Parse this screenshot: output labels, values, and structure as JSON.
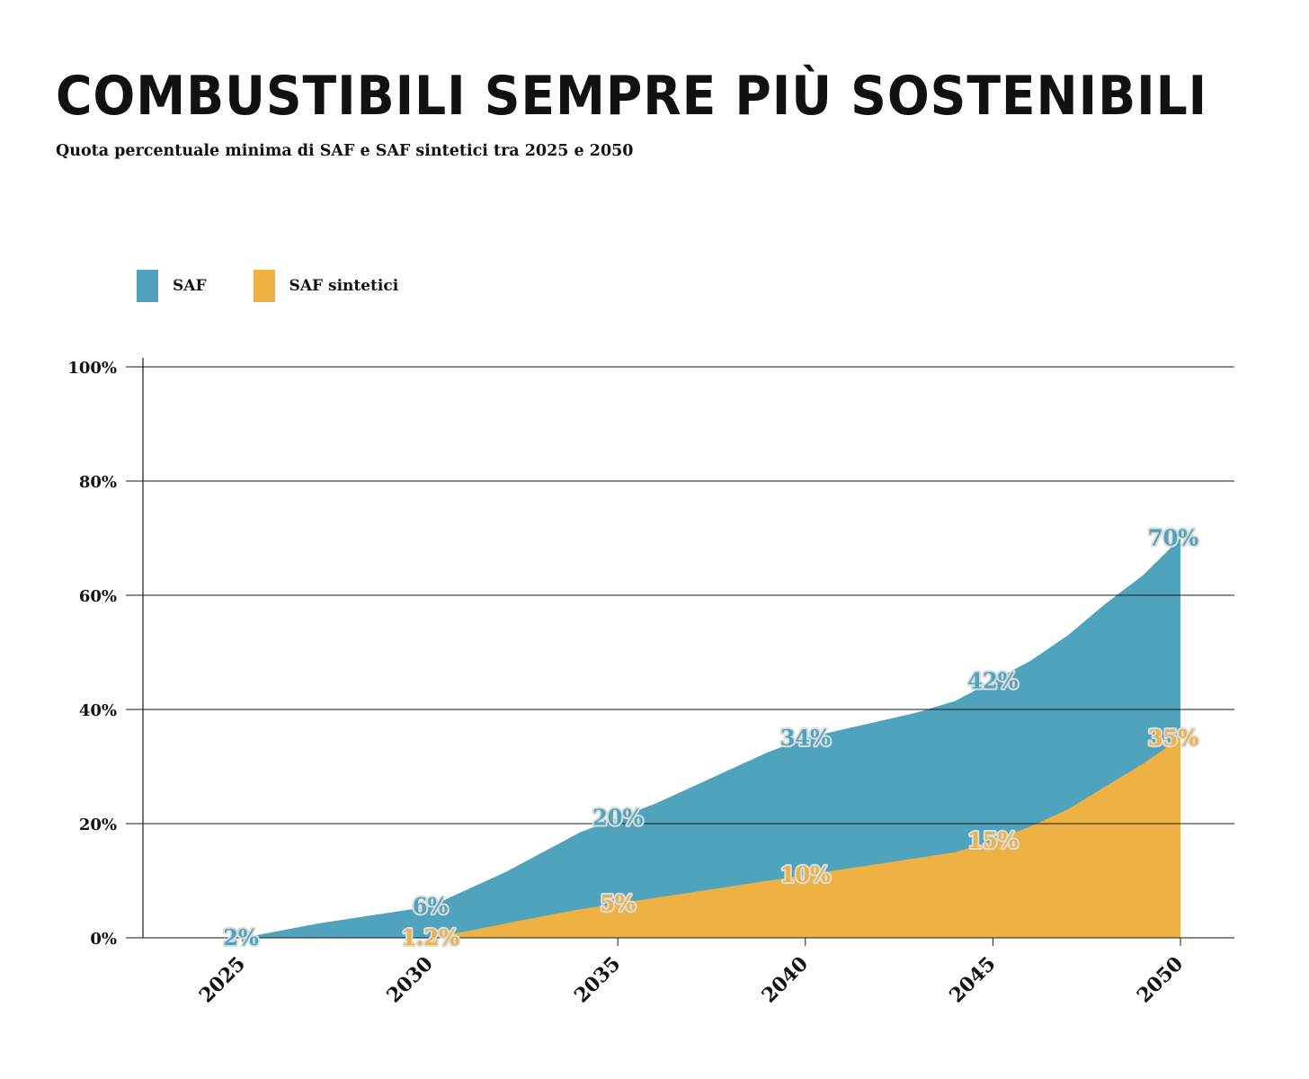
{
  "title": "COMBUSTIBILI SEMPRE PIÙ SOSTENIBILI",
  "subtitle": "Quota percentuale minima di SAF e SAF sintetici tra 2025 e 2050",
  "colors": {
    "saf": "#4fa3bd",
    "saf_sintetici": "#edb144",
    "grid": "#1a1a1a"
  },
  "chart_data": {
    "type": "area",
    "title": "COMBUSTIBILI SEMPRE PIÙ SOSTENIBILI",
    "subtitle": "Quota percentuale minima di SAF e SAF sintetici tra 2025 e 2050",
    "x": [
      2025,
      2030,
      2035,
      2040,
      2045,
      2050
    ],
    "series": [
      {
        "name": "SAF",
        "x": [
          2025,
          2027,
          2028,
          2030,
          2031,
          2032,
          2033,
          2034,
          2035,
          2036,
          2037,
          2038,
          2039,
          2040,
          2041,
          2042,
          2043,
          2044,
          2045,
          2046,
          2047,
          2048,
          2049,
          2050
        ],
        "values": [
          0,
          2.5,
          3.5,
          5.5,
          8.5,
          11.5,
          15,
          18.5,
          21,
          23.5,
          26.5,
          29.5,
          32.5,
          35,
          36.5,
          38,
          39.5,
          41.5,
          45,
          48.5,
          53,
          58.5,
          63.5,
          70
        ],
        "labels": [
          {
            "x": 2025,
            "text": "2%"
          },
          {
            "x": 2030,
            "text": "6%"
          },
          {
            "x": 2035,
            "text": "20%"
          },
          {
            "x": 2040,
            "text": "34%"
          },
          {
            "x": 2045,
            "text": "42%"
          },
          {
            "x": 2050,
            "text": "70%"
          }
        ]
      },
      {
        "name": "SAF sintetici",
        "x": [
          2025,
          2030,
          2031,
          2032,
          2033,
          2034,
          2035,
          2036,
          2037,
          2038,
          2039,
          2040,
          2041,
          2042,
          2043,
          2044,
          2045,
          2046,
          2047,
          2048,
          2049,
          2050
        ],
        "values": [
          0,
          0,
          1.2,
          2.5,
          3.8,
          5,
          6,
          7,
          8,
          9,
          10,
          11,
          12,
          13,
          14,
          15,
          17,
          19.5,
          22.5,
          26.5,
          30.5,
          35
        ],
        "labels": [
          {
            "x": 2030,
            "text": "1.2%"
          },
          {
            "x": 2035,
            "text": "5%"
          },
          {
            "x": 2040,
            "text": "10%"
          },
          {
            "x": 2045,
            "text": "15%"
          },
          {
            "x": 2050,
            "text": "35%"
          }
        ]
      }
    ],
    "xticks": [
      "2025",
      "2030",
      "2035",
      "2040",
      "2045",
      "2050"
    ],
    "yticks": [
      "0%",
      "20%",
      "40%",
      "60%",
      "80%",
      "100%"
    ],
    "ylim": [
      0,
      100
    ],
    "xlim": [
      2025,
      2050
    ],
    "grid": true,
    "legend": "top-left"
  }
}
